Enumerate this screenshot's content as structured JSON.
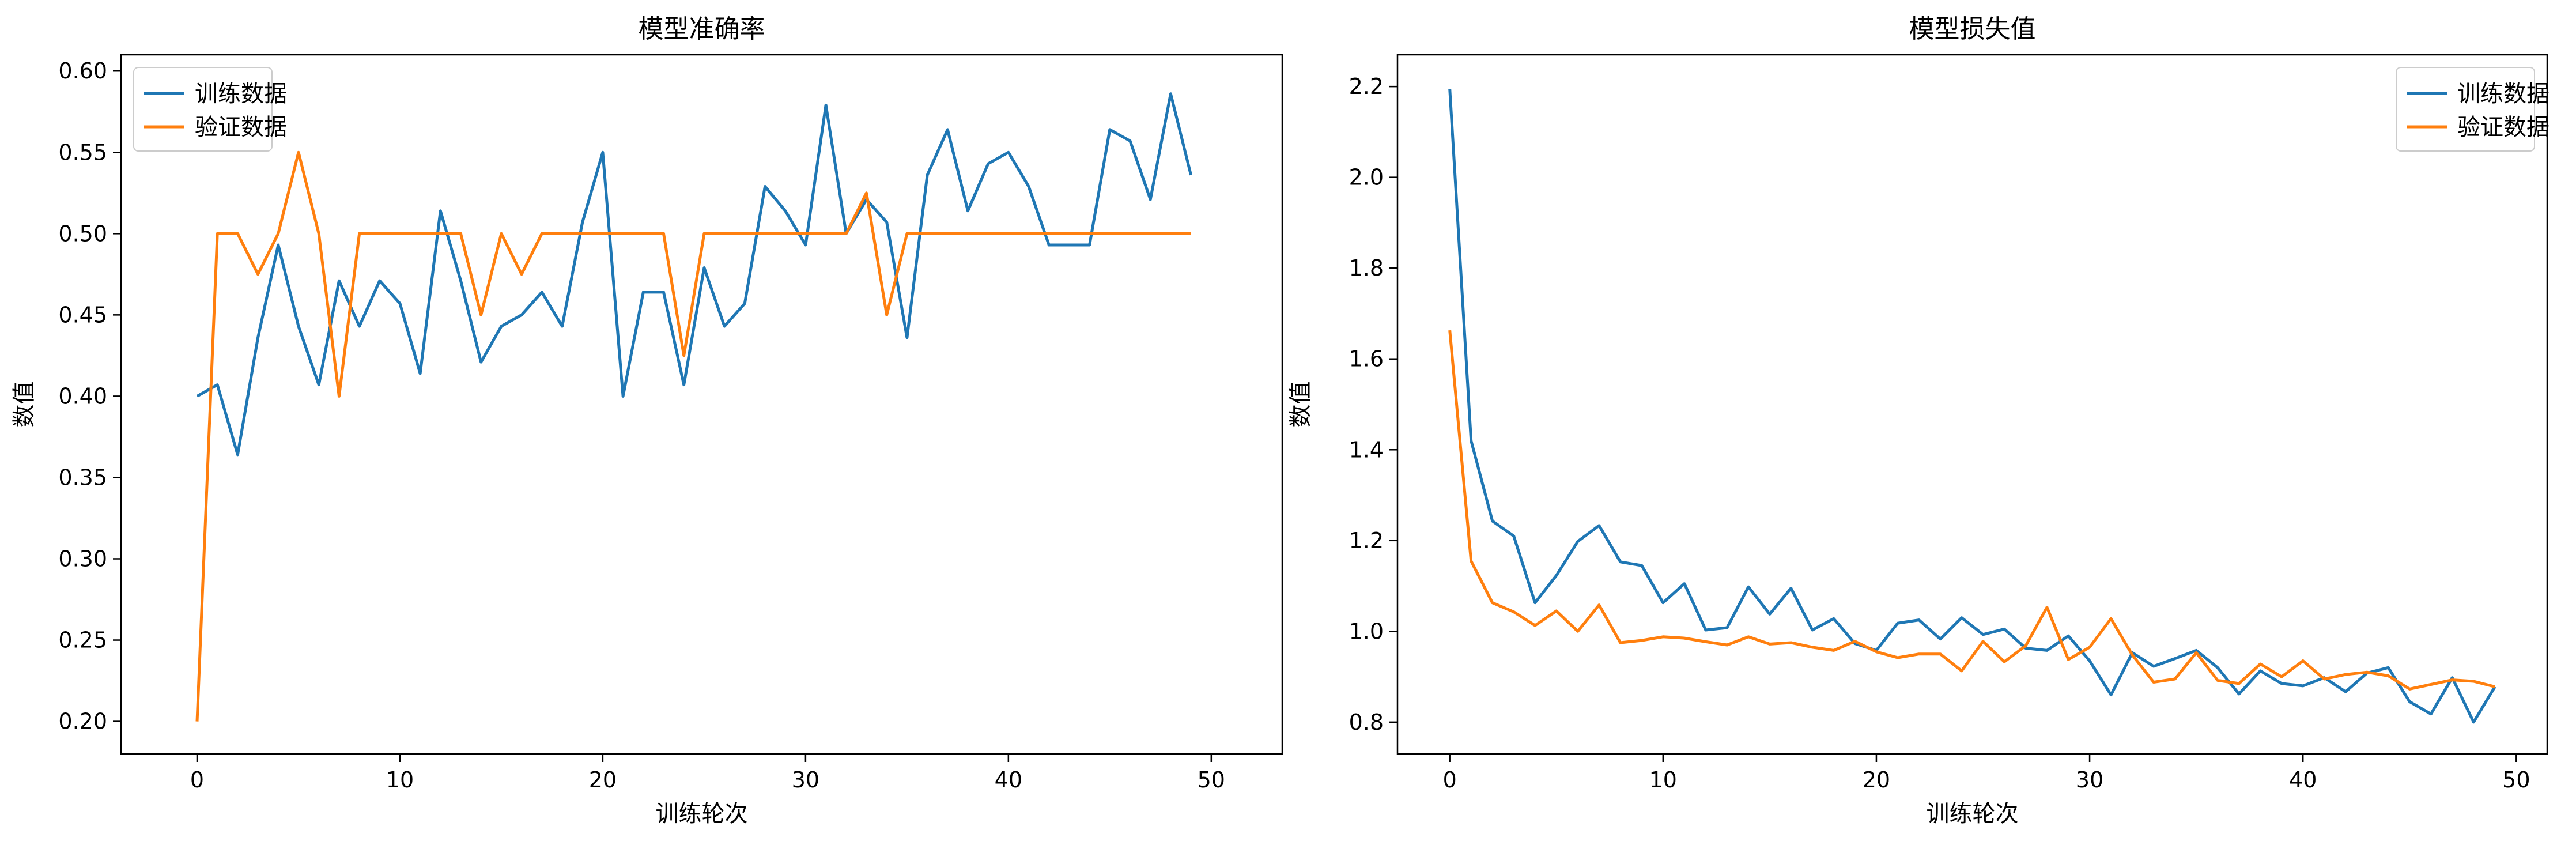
{
  "chart_data": [
    {
      "type": "line",
      "title": "模型准确率",
      "xlabel": "训练轮次",
      "ylabel": "数值",
      "xlim": [
        -3.75,
        53.5
      ],
      "ylim": [
        0.18,
        0.61
      ],
      "xticks": [
        0,
        10,
        20,
        30,
        40,
        50
      ],
      "yticks": [
        0.2,
        0.25,
        0.3,
        0.35,
        0.4,
        0.45,
        0.5,
        0.55,
        0.6
      ],
      "ytick_decimals": 2,
      "legend": "top-left",
      "grid": false,
      "x": [
        0,
        1,
        2,
        3,
        4,
        5,
        6,
        7,
        8,
        9,
        10,
        11,
        12,
        13,
        14,
        15,
        16,
        17,
        18,
        19,
        20,
        21,
        22,
        23,
        24,
        25,
        26,
        27,
        28,
        29,
        30,
        31,
        32,
        33,
        34,
        35,
        36,
        37,
        38,
        39,
        40,
        41,
        42,
        43,
        44,
        45,
        46,
        47,
        48,
        49
      ],
      "series": [
        {
          "name": "训练数据",
          "color": "#1f77b4",
          "values": [
            0.4,
            0.407,
            0.364,
            0.436,
            0.493,
            0.443,
            0.407,
            0.471,
            0.443,
            0.471,
            0.457,
            0.414,
            0.514,
            0.471,
            0.421,
            0.443,
            0.45,
            0.464,
            0.443,
            0.507,
            0.55,
            0.4,
            0.464,
            0.464,
            0.407,
            0.479,
            0.443,
            0.457,
            0.529,
            0.514,
            0.493,
            0.579,
            0.5,
            0.521,
            0.507,
            0.436,
            0.536,
            0.564,
            0.514,
            0.543,
            0.55,
            0.529,
            0.493,
            0.493,
            0.493,
            0.564,
            0.557,
            0.521,
            0.586,
            0.536
          ]
        },
        {
          "name": "验证数据",
          "color": "#ff7f0e",
          "values": [
            0.2,
            0.5,
            0.5,
            0.475,
            0.5,
            0.55,
            0.5,
            0.4,
            0.5,
            0.5,
            0.5,
            0.5,
            0.5,
            0.5,
            0.45,
            0.5,
            0.475,
            0.5,
            0.5,
            0.5,
            0.5,
            0.5,
            0.5,
            0.5,
            0.425,
            0.5,
            0.5,
            0.5,
            0.5,
            0.5,
            0.5,
            0.5,
            0.5,
            0.525,
            0.45,
            0.5,
            0.5,
            0.5,
            0.5,
            0.5,
            0.5,
            0.5,
            0.5,
            0.5,
            0.5,
            0.5,
            0.5,
            0.5,
            0.5,
            0.5
          ]
        }
      ]
    },
    {
      "type": "line",
      "title": "模型损失值",
      "xlabel": "训练轮次",
      "ylabel": "数值",
      "xlim": [
        -2.45,
        51.45
      ],
      "ylim": [
        0.73,
        2.27
      ],
      "xticks": [
        0,
        10,
        20,
        30,
        40,
        50
      ],
      "yticks": [
        0.8,
        1.0,
        1.2,
        1.4,
        1.6,
        1.8,
        2.0,
        2.2
      ],
      "ytick_decimals": 1,
      "legend": "top-right",
      "grid": false,
      "x": [
        0,
        1,
        2,
        3,
        4,
        5,
        6,
        7,
        8,
        9,
        10,
        11,
        12,
        13,
        14,
        15,
        16,
        17,
        18,
        19,
        20,
        21,
        22,
        23,
        24,
        25,
        26,
        27,
        28,
        29,
        30,
        31,
        32,
        33,
        34,
        35,
        36,
        37,
        38,
        39,
        40,
        41,
        42,
        43,
        44,
        45,
        46,
        47,
        48,
        49
      ],
      "series": [
        {
          "name": "训练数据",
          "color": "#1f77b4",
          "values": [
            2.195,
            1.42,
            1.243,
            1.21,
            1.063,
            1.123,
            1.198,
            1.233,
            1.153,
            1.145,
            1.063,
            1.105,
            1.003,
            1.008,
            1.098,
            1.038,
            1.095,
            1.003,
            1.028,
            0.973,
            0.958,
            1.018,
            1.025,
            0.983,
            1.03,
            0.993,
            1.005,
            0.963,
            0.958,
            0.99,
            0.935,
            0.86,
            0.953,
            0.923,
            0.94,
            0.958,
            0.92,
            0.862,
            0.913,
            0.885,
            0.88,
            0.898,
            0.867,
            0.908,
            0.92,
            0.845,
            0.818,
            0.898,
            0.8,
            0.878
          ]
        },
        {
          "name": "验证数据",
          "color": "#ff7f0e",
          "values": [
            1.663,
            1.155,
            1.063,
            1.043,
            1.013,
            1.045,
            1.0,
            1.058,
            0.975,
            0.98,
            0.988,
            0.985,
            0.977,
            0.97,
            0.988,
            0.972,
            0.975,
            0.965,
            0.958,
            0.978,
            0.955,
            0.942,
            0.95,
            0.95,
            0.913,
            0.978,
            0.933,
            0.968,
            1.053,
            0.938,
            0.965,
            1.028,
            0.948,
            0.888,
            0.895,
            0.953,
            0.892,
            0.885,
            0.928,
            0.9,
            0.935,
            0.895,
            0.905,
            0.91,
            0.902,
            0.873,
            0.883,
            0.893,
            0.89,
            0.878
          ]
        }
      ]
    }
  ]
}
